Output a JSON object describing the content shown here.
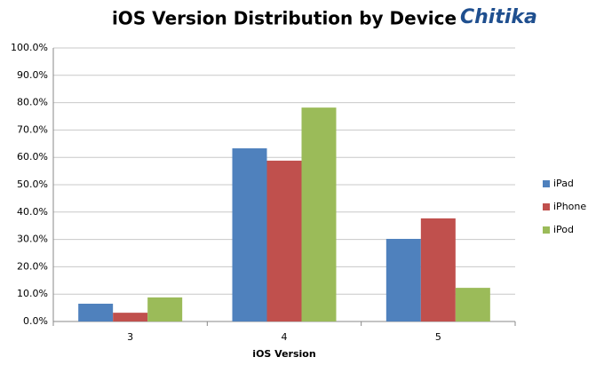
{
  "chart_data": {
    "type": "bar",
    "title": "iOS Version Distribution by Device",
    "logo": "Chitika",
    "x_label": "iOS Version",
    "categories": [
      "3",
      "4",
      "5"
    ],
    "series": [
      {
        "name": "iPad",
        "color": "#4f81bd",
        "values": [
          6.5,
          63.3,
          30.2
        ]
      },
      {
        "name": "iPhone",
        "color": "#c0504d",
        "values": [
          3.2,
          58.8,
          37.7
        ]
      },
      {
        "name": "iPod",
        "color": "#9bbb59",
        "values": [
          8.8,
          78.2,
          12.3
        ]
      }
    ],
    "ylim": [
      0,
      100
    ],
    "yticks": [
      {
        "value": 0,
        "label": "0.0%"
      },
      {
        "value": 10,
        "label": "10.0%"
      },
      {
        "value": 20,
        "label": "20.0%"
      },
      {
        "value": 30,
        "label": "30.0%"
      },
      {
        "value": 40,
        "label": "40.0%"
      },
      {
        "value": 50,
        "label": "50.0%"
      },
      {
        "value": 60,
        "label": "60.0%"
      },
      {
        "value": 70,
        "label": "70.0%"
      },
      {
        "value": 80,
        "label": "80.0%"
      },
      {
        "value": 90,
        "label": "90.0%"
      },
      {
        "value": 100,
        "label": "100.0%"
      }
    ],
    "grid": true,
    "legend": "right"
  }
}
